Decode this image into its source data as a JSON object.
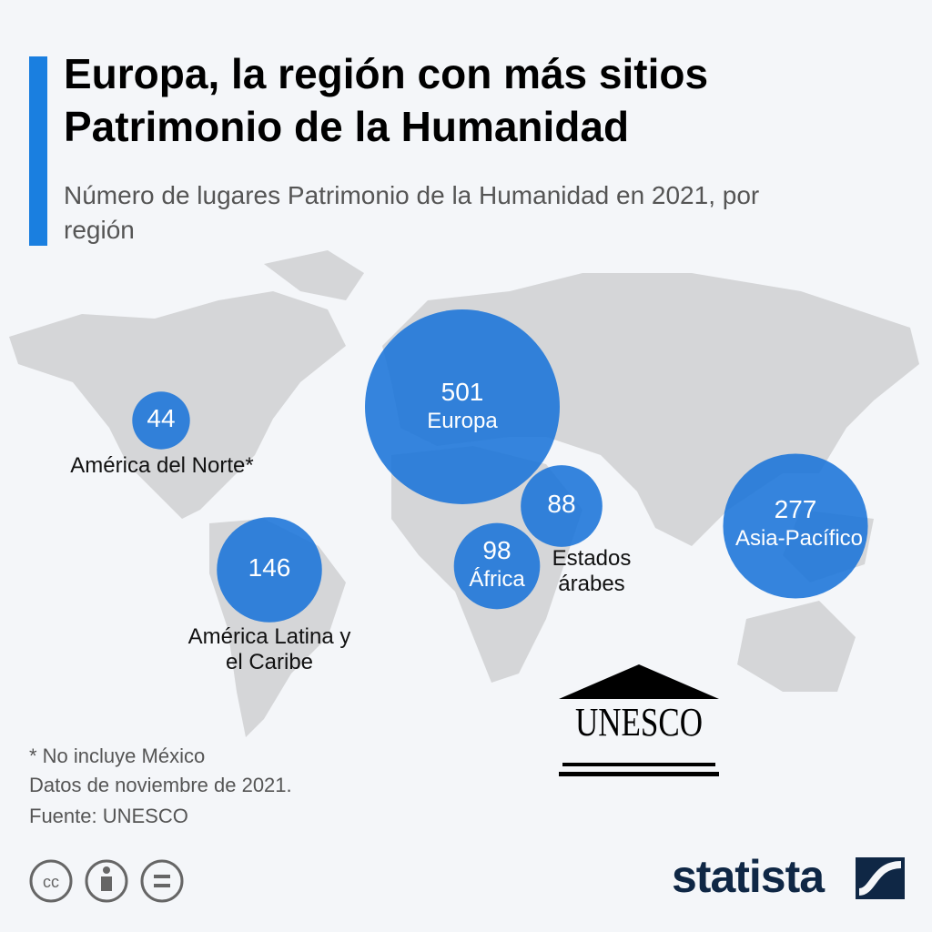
{
  "chart_data": {
    "type": "bubble",
    "title": "Europa, la región con más sitios Patrimonio de la Humanidad",
    "subtitle": "Número de lugares Patrimonio de la Humanidad en 2021, por región",
    "categories": [
      "América del Norte*",
      "América Latina y el Caribe",
      "Europa",
      "Estados árabes",
      "África",
      "Asia-Pacífico"
    ],
    "values": [
      44,
      146,
      501,
      88,
      98,
      277
    ],
    "color": "#1a74d8",
    "notes": [
      "* No incluye México",
      "Datos de noviembre de 2021.",
      "Fuente: UNESCO"
    ],
    "logo": "UNESCO",
    "brand": "statista",
    "license_icon": "cc"
  }
}
